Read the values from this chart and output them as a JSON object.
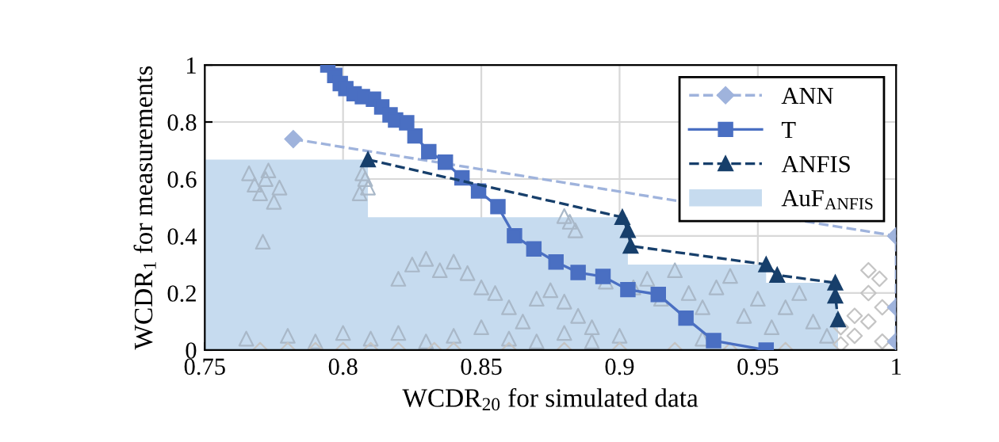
{
  "chart_data": {
    "type": "line",
    "xlabel": "WCDR$_{20}$ for simulated data",
    "ylabel": "WCDR$_{1}$ for measurements",
    "xlim": [
      0.75,
      1
    ],
    "ylim": [
      0,
      1
    ],
    "xticks": [
      0.75,
      0.8,
      0.85,
      0.9,
      0.95,
      1
    ],
    "yticks": [
      0,
      0.2,
      0.4,
      0.6,
      0.8,
      1
    ],
    "grid": true,
    "legend": "top right",
    "series": [
      {
        "name": "AuF$_{ANFIS}$",
        "type": "area",
        "color": "#c6dbef",
        "x": [
          0.75,
          0.809,
          0.809,
          0.903,
          0.903,
          0.953,
          0.953,
          0.979
        ],
        "values": [
          0.668,
          0.668,
          0.466,
          0.466,
          0.3,
          0.3,
          0.236,
          0.236
        ]
      },
      {
        "type": "scatter",
        "marker": "triangle",
        "color": "#a9b8c8",
        "x": [
          0.766,
          0.768,
          0.77,
          0.772,
          0.775,
          0.777,
          0.773,
          0.771,
          0.807,
          0.809,
          0.808,
          0.806,
          0.82,
          0.825,
          0.83,
          0.835,
          0.84,
          0.845,
          0.85,
          0.855,
          0.86,
          0.865,
          0.87,
          0.875,
          0.88,
          0.885,
          0.89,
          0.895,
          0.882,
          0.884,
          0.88,
          0.905,
          0.91,
          0.915,
          0.92,
          0.925,
          0.93,
          0.935,
          0.94,
          0.945,
          0.95,
          0.955,
          0.96,
          0.965,
          0.97,
          0.975,
          0.88,
          0.87,
          0.765,
          0.78,
          0.79,
          0.8,
          0.81,
          0.82,
          0.83,
          0.84,
          0.85,
          0.86,
          0.89,
          0.9,
          0.93
        ],
        "values": [
          0.62,
          0.58,
          0.55,
          0.6,
          0.52,
          0.57,
          0.63,
          0.38,
          0.62,
          0.57,
          0.6,
          0.55,
          0.25,
          0.3,
          0.32,
          0.28,
          0.31,
          0.27,
          0.22,
          0.2,
          0.15,
          0.1,
          0.18,
          0.21,
          0.17,
          0.12,
          0.08,
          0.24,
          0.45,
          0.42,
          0.47,
          0.22,
          0.25,
          0.18,
          0.28,
          0.2,
          0.15,
          0.22,
          0.26,
          0.12,
          0.18,
          0.08,
          0.15,
          0.2,
          0.1,
          0.05,
          0.06,
          0.03,
          0.04,
          0.05,
          0.03,
          0.06,
          0.04,
          0.06,
          0.03,
          0.05,
          0.08,
          0.04,
          0.03,
          0.05,
          0.04
        ]
      },
      {
        "type": "scatter",
        "marker": "diamond",
        "color": "#c4c4c4",
        "x": [
          0.77,
          0.78,
          0.79,
          0.8,
          0.81,
          0.82,
          0.833,
          0.84,
          0.86,
          0.88,
          0.9,
          0.92,
          0.94,
          0.96,
          0.98,
          0.985,
          0.99,
          0.995,
          0.99,
          0.985,
          0.995,
          0.98,
          0.99,
          0.994
        ],
        "values": [
          0,
          0,
          0,
          0,
          0,
          0,
          0,
          0,
          0,
          0,
          0,
          0,
          0,
          0,
          0.02,
          0.05,
          0.1,
          0.15,
          0.2,
          0.12,
          0.03,
          0.08,
          0.28,
          0.25
        ]
      },
      {
        "name": "ANN",
        "marker": "diamond",
        "line_style": "dashed",
        "color": "#9fb3dc",
        "x": [
          0.782,
          1.0,
          1.0,
          1.0
        ],
        "values": [
          0.74,
          0.4,
          0.15,
          0.03
        ]
      },
      {
        "name": "T",
        "marker": "square",
        "line_style": "solid",
        "color": "#4a6fc2",
        "x": [
          0.7945,
          0.797,
          0.799,
          0.801,
          0.804,
          0.807,
          0.811,
          0.814,
          0.817,
          0.819,
          0.823,
          0.826,
          0.831,
          0.837,
          0.843,
          0.849,
          0.856,
          0.862,
          0.869,
          0.877,
          0.885,
          0.894,
          0.903,
          0.914,
          0.924,
          0.934,
          0.953
        ],
        "values": [
          1.0,
          0.963,
          0.935,
          0.917,
          0.899,
          0.889,
          0.88,
          0.853,
          0.825,
          0.807,
          0.797,
          0.751,
          0.696,
          0.659,
          0.604,
          0.558,
          0.503,
          0.401,
          0.355,
          0.309,
          0.272,
          0.258,
          0.212,
          0.195,
          0.112,
          0.033,
          0.0
        ]
      },
      {
        "name": "ANFIS",
        "marker": "triangle",
        "line_style": "dashed",
        "color": "#173f6b",
        "x": [
          0.809,
          0.901,
          0.903,
          0.904,
          0.953,
          0.957,
          0.978,
          0.978,
          0.979
        ],
        "values": [
          0.668,
          0.466,
          0.42,
          0.365,
          0.3,
          0.263,
          0.236,
          0.19,
          0.107
        ]
      }
    ]
  }
}
